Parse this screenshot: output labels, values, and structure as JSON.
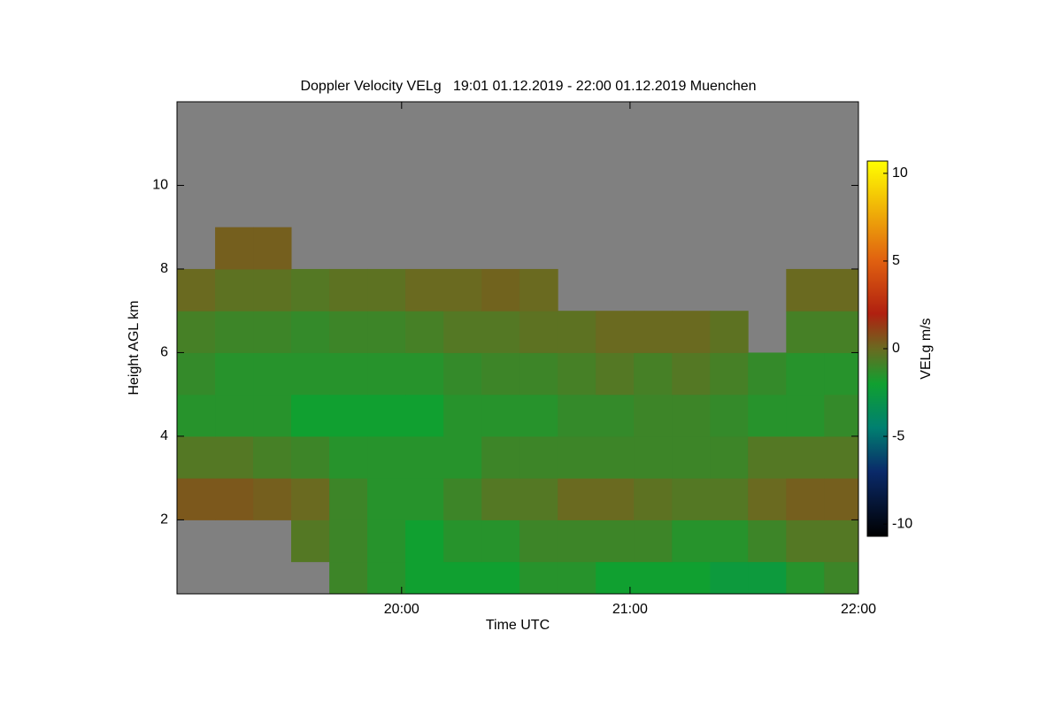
{
  "chart_data": {
    "type": "heatmap",
    "title": "Doppler Velocity VELg   19:01 01.12.2019 - 22:00 01.12.2019 Muenchen",
    "x_label": "Time UTC",
    "y_label": "Height AGL km",
    "colorbar_label": "VELg m/s",
    "xlim": [
      19.0167,
      22.0
    ],
    "xticks": [
      {
        "value": 20,
        "label": "20:00"
      },
      {
        "value": 21,
        "label": "21:00"
      },
      {
        "value": 22,
        "label": "22:00"
      }
    ],
    "ylim": [
      0.23,
      12
    ],
    "yticks": [
      2,
      4,
      6,
      8,
      10
    ],
    "clim": [
      -10.7,
      10.7
    ],
    "cticks": [
      -10,
      -5,
      0,
      5,
      10
    ],
    "colorscale": [
      [
        -10.7,
        "#000000"
      ],
      [
        -7,
        "#0a2a6a"
      ],
      [
        -4.5,
        "#008070"
      ],
      [
        -2,
        "#10a030"
      ],
      [
        0,
        "#6a6a20"
      ],
      [
        2,
        "#b02010"
      ],
      [
        5,
        "#e06010"
      ],
      [
        10.7,
        "#ffff00"
      ]
    ],
    "no_data_color": "#808080",
    "x": [
      19.1,
      19.267,
      19.433,
      19.6,
      19.767,
      19.933,
      20.1,
      20.267,
      20.433,
      20.6,
      20.767,
      20.933,
      21.1,
      21.267,
      21.433,
      21.6,
      21.767,
      21.933
    ],
    "y": [
      0.5,
      1.5,
      2.5,
      3.5,
      4.5,
      5.5,
      6.5,
      7.5,
      8.5,
      9.5,
      10.5,
      11.5
    ],
    "z": [
      [
        null,
        null,
        null,
        null,
        -1,
        -1.5,
        -2,
        -2,
        -2,
        -1.5,
        -1.5,
        -2,
        -2,
        -2,
        -2.5,
        -2.5,
        -1.5,
        -1
      ],
      [
        null,
        null,
        null,
        -0.5,
        -1,
        -1.5,
        -2,
        -1.5,
        -1.5,
        -1,
        -1,
        -1,
        -1,
        -1.5,
        -1.5,
        -1,
        -0.5,
        -0.5
      ],
      [
        0.5,
        0.5,
        0.3,
        0,
        -1,
        -1.5,
        -1.5,
        -1,
        -0.5,
        -0.5,
        0,
        0,
        -0.3,
        -0.5,
        -0.5,
        0,
        0.3,
        0.3
      ],
      [
        -0.5,
        -0.5,
        -0.8,
        -1,
        -1.5,
        -1.5,
        -1.5,
        -1.5,
        -1,
        -1,
        -1,
        -1,
        -1,
        -1,
        -1,
        -0.5,
        -0.5,
        -0.5
      ],
      [
        -1.5,
        -1.5,
        -1.5,
        -2,
        -2,
        -2,
        -2,
        -1.5,
        -1.5,
        -1.5,
        -1.2,
        -1.2,
        -1,
        -1,
        -1.2,
        -1.5,
        -1.5,
        -1.2
      ],
      [
        -1.2,
        -1.5,
        -1.5,
        -1.5,
        -1.5,
        -1.5,
        -1.5,
        -1.2,
        -1,
        -1,
        -0.8,
        -0.5,
        -0.8,
        -0.5,
        -0.8,
        -1.2,
        -1.5,
        -1.5
      ],
      [
        -0.8,
        -1,
        -1,
        -1.2,
        -1,
        -1,
        -0.8,
        -0.5,
        -0.5,
        -0.3,
        -0.3,
        0,
        0,
        0,
        -0.3,
        null,
        -0.8,
        -0.8
      ],
      [
        0,
        -0.3,
        -0.3,
        -0.5,
        -0.3,
        -0.3,
        0,
        0,
        0.2,
        0,
        null,
        null,
        null,
        null,
        null,
        null,
        0,
        0
      ],
      [
        null,
        0.3,
        0.3,
        null,
        null,
        null,
        null,
        null,
        null,
        null,
        null,
        null,
        null,
        null,
        null,
        null,
        null,
        null
      ],
      [
        null,
        null,
        null,
        null,
        null,
        null,
        null,
        null,
        null,
        null,
        null,
        null,
        null,
        null,
        null,
        null,
        null,
        null
      ],
      [
        null,
        null,
        null,
        null,
        null,
        null,
        null,
        null,
        null,
        null,
        null,
        null,
        null,
        null,
        null,
        null,
        null,
        null
      ],
      [
        null,
        null,
        null,
        null,
        null,
        null,
        null,
        null,
        null,
        null,
        null,
        null,
        null,
        null,
        null,
        null,
        null,
        null
      ]
    ]
  }
}
